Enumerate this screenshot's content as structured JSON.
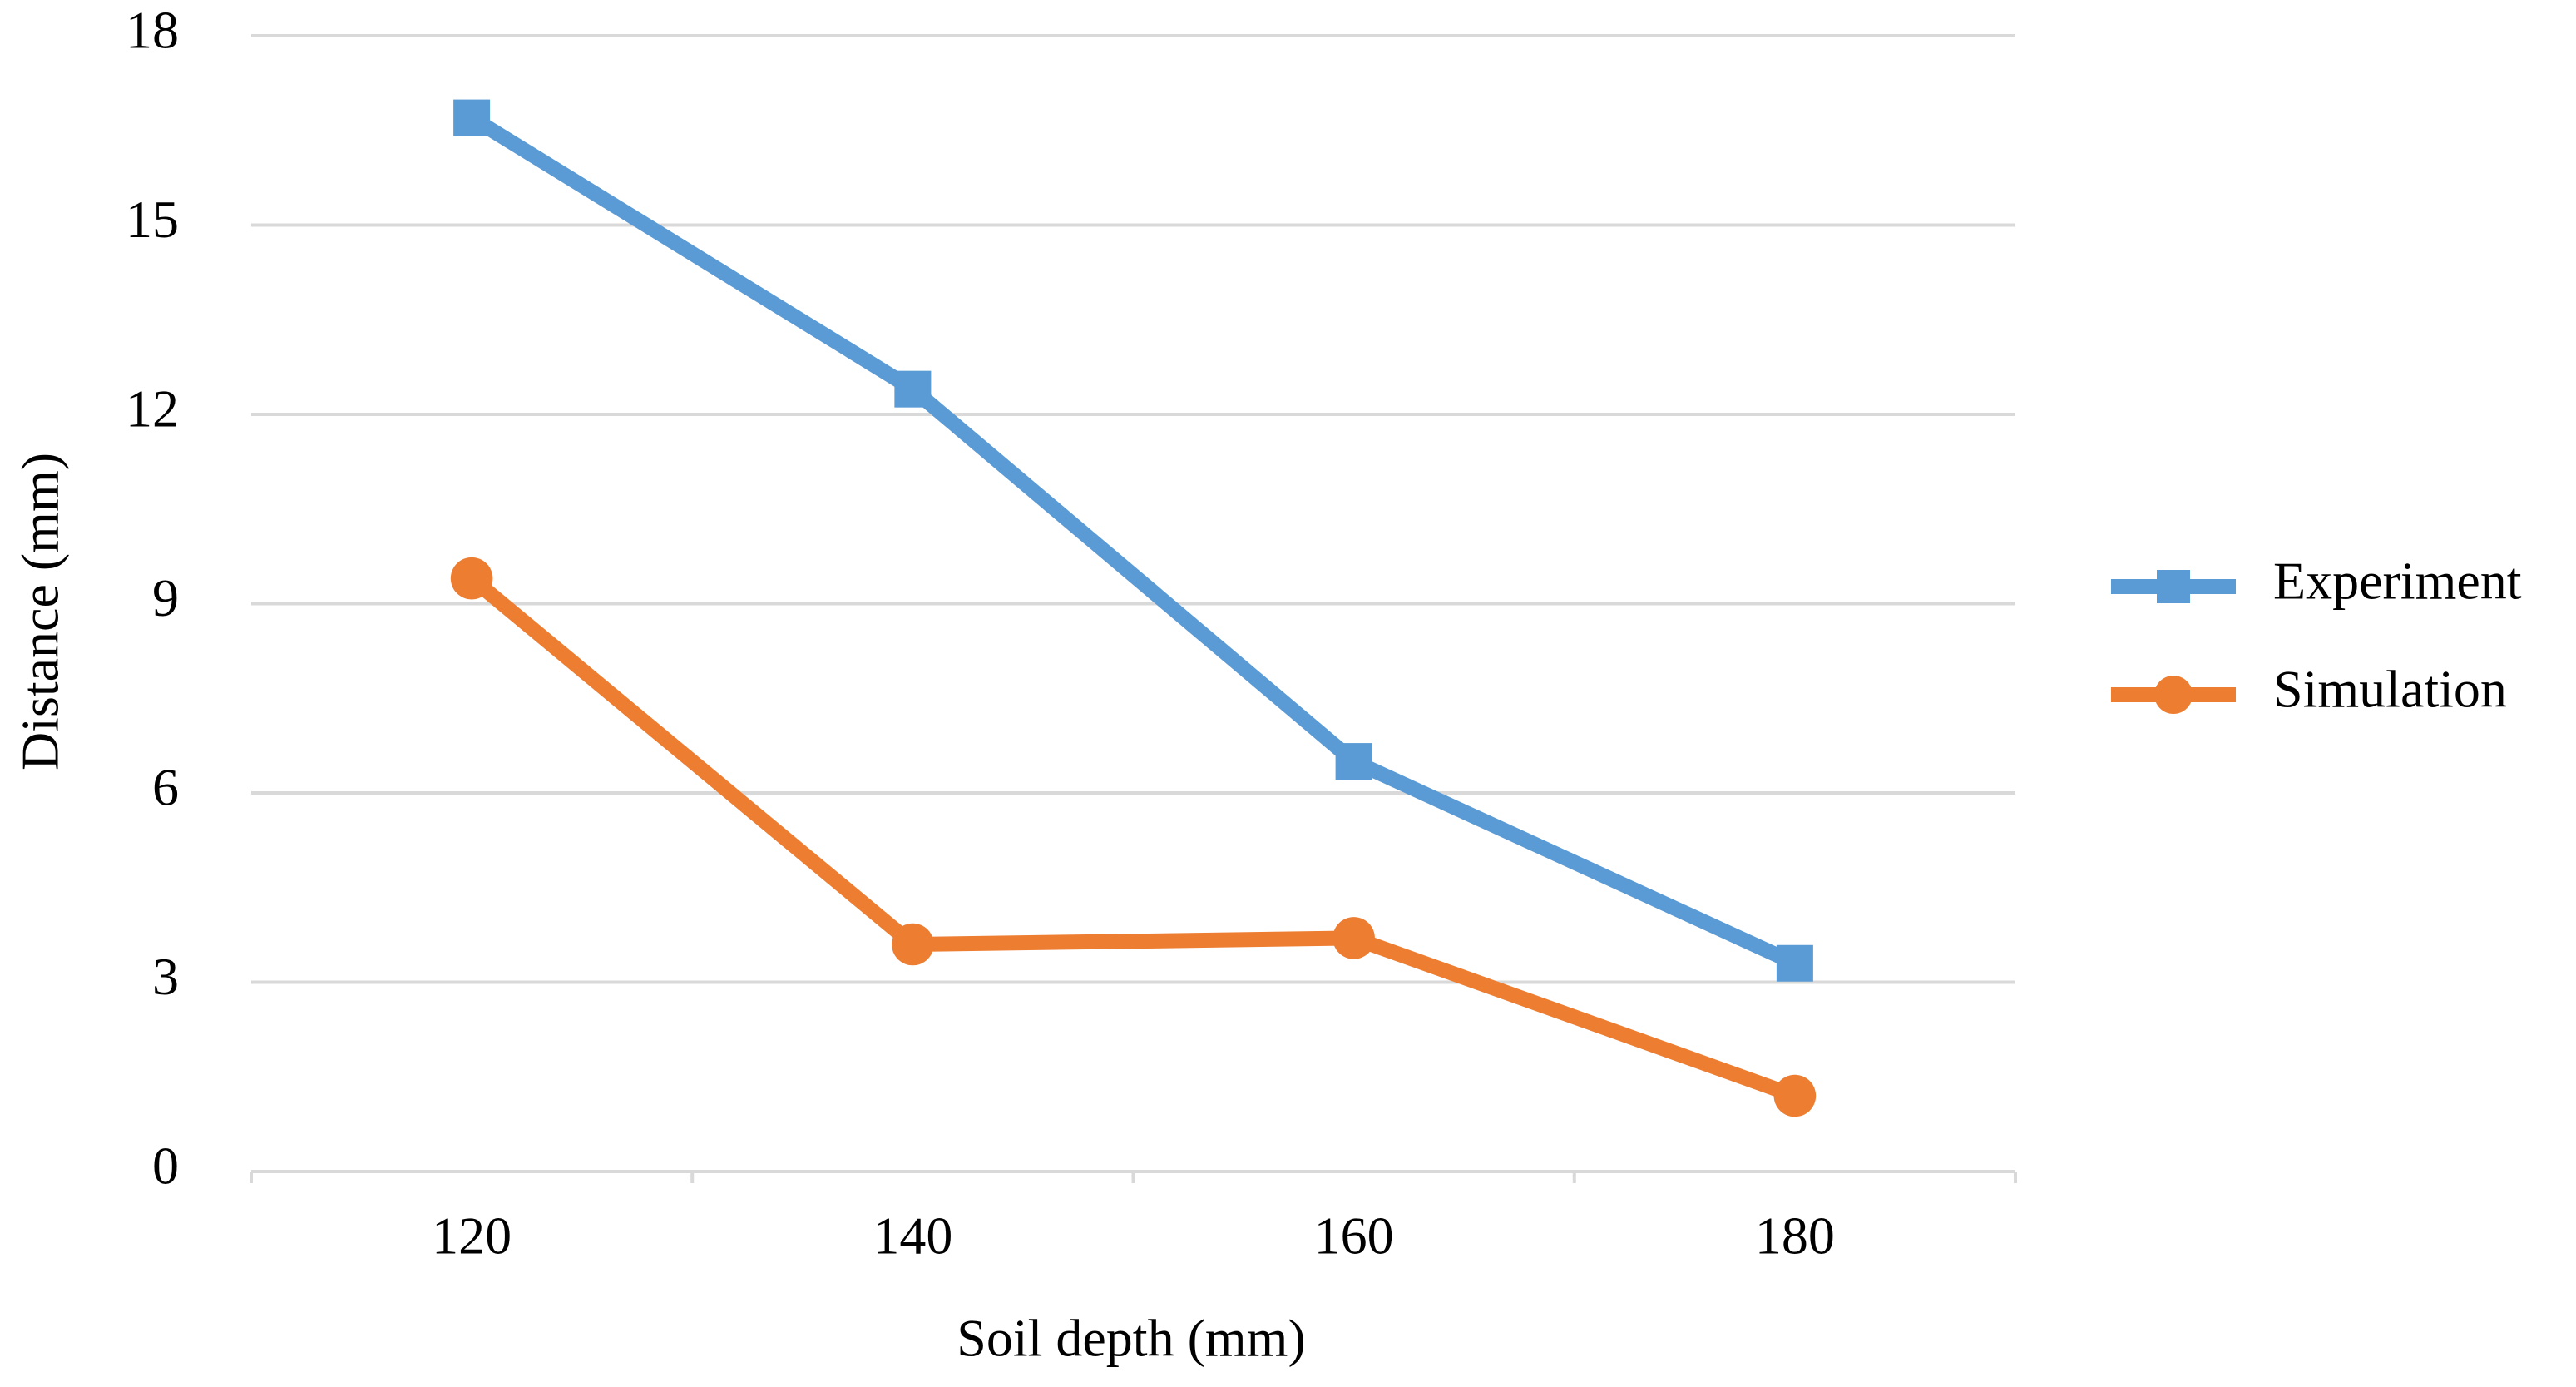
{
  "chart_data": {
    "type": "line",
    "categories": [
      "120",
      "140",
      "160",
      "180"
    ],
    "x_label": "Soil depth (mm)",
    "y_label": "Distance (mm)",
    "ylim": [
      0,
      18
    ],
    "yticks": [
      0,
      3,
      6,
      9,
      12,
      15,
      18
    ],
    "grid": true,
    "legend": "right",
    "series": [
      {
        "name": "Experiment",
        "color": "#5b9bd5",
        "marker": "square",
        "values": [
          16.7,
          12.4,
          6.5,
          3.3
        ]
      },
      {
        "name": "Simulation",
        "color": "#ed7d31",
        "marker": "circle",
        "values": [
          9.4,
          3.6,
          3.7,
          1.2
        ]
      }
    ]
  }
}
